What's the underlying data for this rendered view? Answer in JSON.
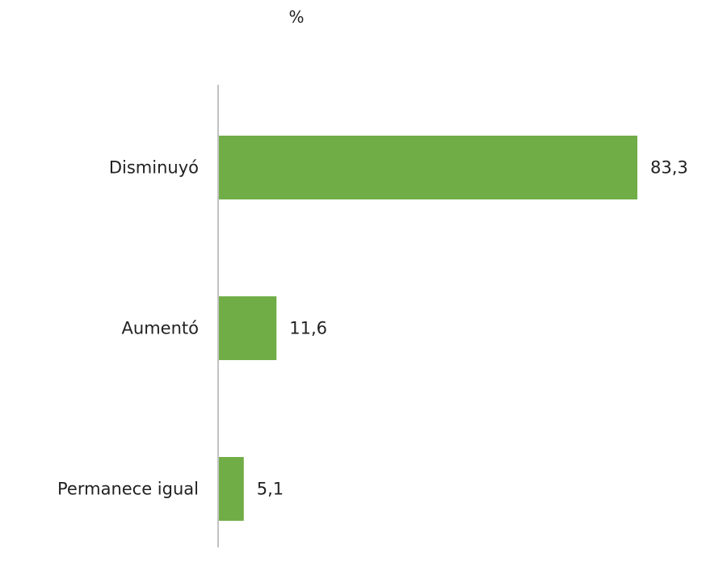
{
  "chart_data": {
    "type": "bar",
    "orientation": "horizontal",
    "unit_label": "%",
    "categories": [
      "Disminuyó",
      "Aumentó",
      "Permanece igual"
    ],
    "values": [
      83.3,
      11.6,
      5.1
    ],
    "value_labels": [
      "83,3",
      "11,6",
      "5,1"
    ],
    "bar_color": "#70ad47",
    "axis_color": "#9a9a9a",
    "xlim": [
      0,
      83.3
    ],
    "grid": false,
    "legend": "none"
  }
}
